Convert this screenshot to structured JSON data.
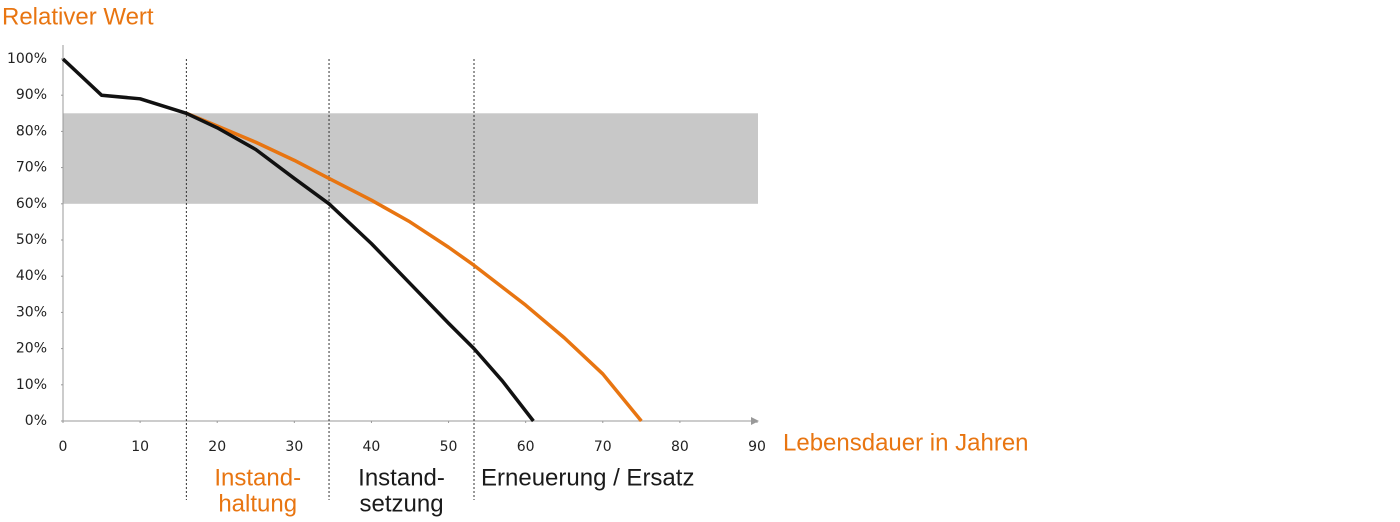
{
  "chart_data": {
    "type": "line",
    "y_label": "Relativer Wert",
    "x_label": "Lebensdauer in Jahren",
    "xlim": [
      0,
      90
    ],
    "ylim": [
      0,
      100
    ],
    "xticks": [
      0,
      10,
      20,
      30,
      40,
      50,
      60,
      70,
      80,
      90
    ],
    "yticks": [
      {
        "value": 0,
        "label": "0%"
      },
      {
        "value": 10,
        "label": "10%"
      },
      {
        "value": 20,
        "label": "20%"
      },
      {
        "value": 30,
        "label": "30%"
      },
      {
        "value": 40,
        "label": "40%"
      },
      {
        "value": 50,
        "label": "50%"
      },
      {
        "value": 60,
        "label": "60%"
      },
      {
        "value": 70,
        "label": "70%"
      },
      {
        "value": 80,
        "label": "80%"
      },
      {
        "value": 90,
        "label": "90%"
      },
      {
        "value": 100,
        "label": "100%"
      }
    ],
    "band": {
      "from": 60,
      "to": 85,
      "color": "#c8c8c8"
    },
    "phase_boundaries": [
      16,
      34.5,
      53.3
    ],
    "phases": [
      {
        "label": [
          "Instand-",
          "haltung"
        ],
        "color": "#e87511"
      },
      {
        "label": [
          "Instand-",
          "setzung"
        ],
        "color": "#1a1a1a"
      },
      {
        "label": [
          "Erneuerung / Ersatz"
        ],
        "color": "#1a1a1a"
      }
    ],
    "series": [
      {
        "color": "#111111",
        "x": [
          0,
          5,
          10,
          16,
          20,
          25,
          30,
          34.5,
          40,
          45,
          50,
          53.3,
          57,
          61
        ],
        "values": [
          100,
          90,
          89,
          85,
          81,
          75,
          67,
          60,
          49,
          38,
          27,
          20,
          11,
          0
        ]
      },
      {
        "color": "#e87511",
        "x": [
          16,
          20,
          25,
          30,
          34.5,
          40,
          45,
          50,
          53.3,
          60,
          65,
          70,
          75
        ],
        "values": [
          85,
          81.5,
          77,
          72,
          67,
          61,
          55,
          48,
          43,
          32,
          23,
          13,
          0
        ]
      }
    ]
  }
}
